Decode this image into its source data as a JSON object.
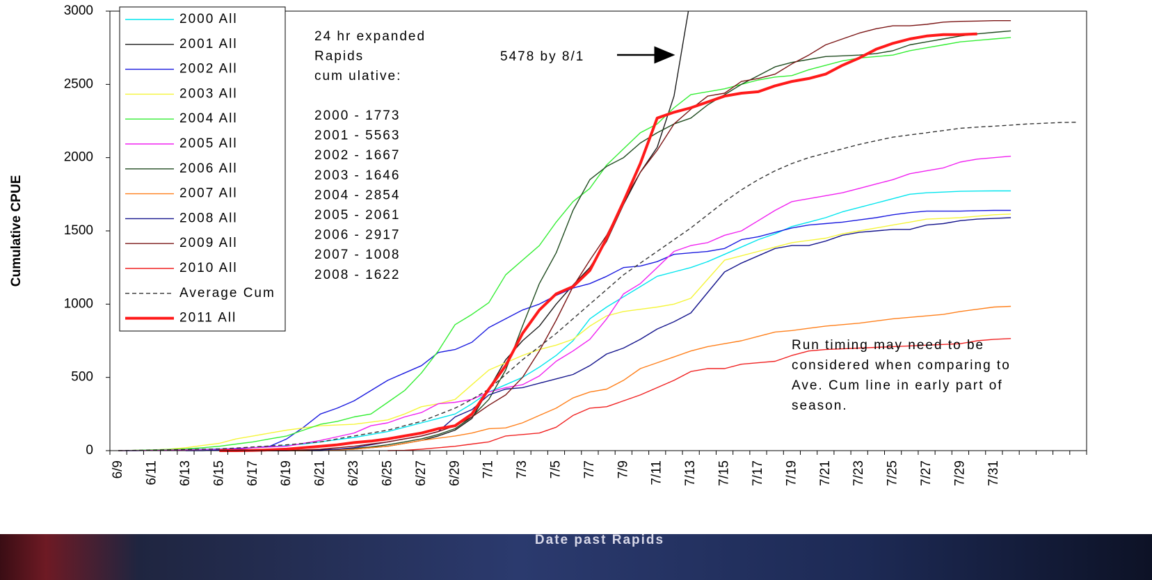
{
  "chart_data": {
    "type": "line",
    "y_label": "Cumulative CPUE",
    "x_label": "Date past Rapids",
    "ylim": [
      0,
      3000
    ],
    "yticks": [
      0,
      500,
      1000,
      1500,
      2000,
      2500,
      3000
    ],
    "legend": "upper left",
    "categories": [
      "6/9",
      null,
      "6/11",
      null,
      "6/13",
      null,
      "6/15",
      null,
      "6/17",
      null,
      "6/19",
      null,
      "6/21",
      null,
      "6/23",
      null,
      "6/25",
      null,
      "6/27",
      null,
      "6/29",
      null,
      "7/1",
      null,
      "7/3",
      null,
      "7/5",
      null,
      "7/7",
      null,
      "7/9",
      null,
      "7/11",
      null,
      "7/13",
      null,
      "7/15",
      null,
      "7/17",
      null,
      "7/19",
      null,
      "7/21",
      null,
      "7/23",
      null,
      "7/25",
      null,
      "7/27",
      null,
      "7/29",
      null,
      "7/31",
      null,
      null,
      null,
      null,
      null
    ],
    "series": [
      {
        "name": "2000 All",
        "color": "#00e5ee",
        "values": [
          0,
          0,
          2,
          5,
          8,
          10,
          12,
          15,
          20,
          25,
          35,
          45,
          60,
          75,
          90,
          110,
          130,
          160,
          190,
          220,
          250,
          320,
          400,
          450,
          500,
          570,
          650,
          750,
          900,
          980,
          1050,
          1120,
          1190,
          1220,
          1250,
          1290,
          1340,
          1390,
          1440,
          1480,
          1530,
          1560,
          1590,
          1630,
          1660,
          1690,
          1720,
          1750,
          1760,
          1765,
          1770,
          1772,
          1773,
          1773,
          null,
          null,
          null,
          null
        ]
      },
      {
        "name": "2001 All",
        "color": "#1a1a1a",
        "values": [
          null,
          null,
          null,
          null,
          null,
          null,
          0,
          0,
          0,
          0,
          0,
          0,
          0,
          5,
          10,
          20,
          30,
          50,
          70,
          100,
          140,
          220,
          420,
          620,
          750,
          850,
          1000,
          1130,
          1250,
          1430,
          1680,
          1900,
          2070,
          2420,
          3100,
          null,
          null,
          null,
          null,
          null,
          null,
          null,
          null,
          null,
          null,
          null,
          null,
          null,
          null,
          null,
          null,
          null,
          null,
          null,
          null,
          null,
          null,
          null
        ]
      },
      {
        "name": "2002 All",
        "color": "#1a1adf",
        "values": [
          null,
          null,
          null,
          null,
          0,
          0,
          5,
          10,
          20,
          30,
          80,
          160,
          250,
          290,
          340,
          410,
          480,
          530,
          580,
          670,
          690,
          740,
          840,
          900,
          960,
          1000,
          1060,
          1110,
          1140,
          1190,
          1250,
          1260,
          1290,
          1340,
          1350,
          1360,
          1380,
          1440,
          1460,
          1490,
          1520,
          1540,
          1550,
          1560,
          1575,
          1590,
          1610,
          1625,
          1635,
          1635,
          1635,
          1638,
          1640,
          1640,
          null,
          null,
          null,
          null
        ]
      },
      {
        "name": "2003 All",
        "color": "#f5f53a",
        "values": [
          0,
          2,
          5,
          10,
          20,
          35,
          50,
          80,
          100,
          120,
          140,
          155,
          170,
          175,
          180,
          195,
          210,
          250,
          300,
          320,
          350,
          450,
          550,
          600,
          650,
          690,
          720,
          760,
          850,
          920,
          950,
          965,
          980,
          1000,
          1040,
          1170,
          1300,
          1330,
          1360,
          1390,
          1420,
          1435,
          1450,
          1480,
          1500,
          1520,
          1540,
          1560,
          1580,
          1585,
          1590,
          1600,
          1610,
          1615,
          null,
          null,
          null,
          null
        ]
      },
      {
        "name": "2004 All",
        "color": "#33ee33",
        "values": [
          0,
          2,
          5,
          8,
          12,
          20,
          30,
          45,
          60,
          80,
          100,
          140,
          180,
          200,
          230,
          250,
          330,
          410,
          530,
          680,
          860,
          930,
          1010,
          1200,
          1300,
          1400,
          1560,
          1700,
          1790,
          1950,
          2060,
          2170,
          2230,
          2340,
          2430,
          2450,
          2470,
          2500,
          2530,
          2550,
          2560,
          2600,
          2630,
          2660,
          2680,
          2690,
          2700,
          2730,
          2750,
          2770,
          2790,
          2800,
          2810,
          2820,
          null,
          null,
          null,
          null
        ]
      },
      {
        "name": "2005 All",
        "color": "#f020f0",
        "values": [
          0,
          0,
          2,
          4,
          6,
          8,
          10,
          15,
          20,
          25,
          30,
          50,
          70,
          95,
          120,
          170,
          190,
          230,
          260,
          320,
          330,
          350,
          400,
          430,
          450,
          510,
          610,
          680,
          760,
          900,
          1070,
          1140,
          1250,
          1360,
          1400,
          1420,
          1470,
          1500,
          1570,
          1640,
          1700,
          1720,
          1740,
          1760,
          1790,
          1820,
          1850,
          1890,
          1910,
          1930,
          1970,
          1990,
          2000,
          2010,
          null,
          null,
          null,
          null
        ]
      },
      {
        "name": "2006 All",
        "color": "#1e4a1e",
        "values": [
          null,
          null,
          null,
          null,
          null,
          null,
          0,
          0,
          0,
          0,
          0,
          2,
          5,
          10,
          15,
          25,
          40,
          60,
          80,
          110,
          150,
          230,
          350,
          550,
          850,
          1140,
          1350,
          1640,
          1850,
          1940,
          2000,
          2100,
          2170,
          2230,
          2270,
          2360,
          2430,
          2500,
          2560,
          2620,
          2650,
          2670,
          2690,
          2695,
          2700,
          2710,
          2730,
          2770,
          2790,
          2810,
          2830,
          2845,
          2855,
          2865,
          null,
          null,
          null,
          null
        ]
      },
      {
        "name": "2007 All",
        "color": "#ff7f1a",
        "values": [
          null,
          null,
          null,
          null,
          null,
          null,
          null,
          null,
          null,
          null,
          0,
          0,
          2,
          5,
          10,
          20,
          30,
          50,
          70,
          85,
          100,
          120,
          150,
          155,
          190,
          240,
          290,
          360,
          400,
          420,
          480,
          560,
          600,
          640,
          680,
          710,
          730,
          750,
          780,
          810,
          820,
          835,
          850,
          860,
          870,
          885,
          900,
          910,
          920,
          930,
          950,
          965,
          980,
          985,
          null,
          null,
          null,
          null
        ]
      },
      {
        "name": "2008 All",
        "color": "#14148c",
        "values": [
          null,
          null,
          null,
          null,
          null,
          null,
          null,
          null,
          0,
          0,
          0,
          2,
          5,
          10,
          20,
          40,
          60,
          80,
          100,
          130,
          230,
          280,
          380,
          420,
          430,
          460,
          490,
          520,
          580,
          660,
          700,
          760,
          830,
          880,
          940,
          1080,
          1220,
          1280,
          1330,
          1380,
          1400,
          1400,
          1430,
          1470,
          1490,
          1500,
          1510,
          1510,
          1540,
          1550,
          1570,
          1580,
          1585,
          1590,
          null,
          null,
          null,
          null
        ]
      },
      {
        "name": "2009 All",
        "color": "#7a1414",
        "values": [
          null,
          null,
          null,
          null,
          null,
          null,
          0,
          0,
          0,
          0,
          0,
          5,
          10,
          20,
          30,
          45,
          60,
          80,
          100,
          130,
          170,
          230,
          310,
          380,
          500,
          680,
          890,
          1120,
          1300,
          1470,
          1700,
          1900,
          2050,
          2230,
          2330,
          2420,
          2440,
          2520,
          2540,
          2570,
          2640,
          2700,
          2770,
          2810,
          2850,
          2880,
          2900,
          2900,
          2910,
          2925,
          2930,
          2932,
          2935,
          2935,
          null,
          null,
          null,
          null
        ]
      },
      {
        "name": "2010 All",
        "color": "#f02020",
        "values": [
          null,
          null,
          null,
          null,
          null,
          null,
          null,
          null,
          null,
          null,
          null,
          null,
          null,
          null,
          null,
          null,
          0,
          2,
          10,
          20,
          30,
          45,
          60,
          100,
          110,
          120,
          160,
          240,
          290,
          300,
          340,
          380,
          430,
          480,
          540,
          560,
          560,
          590,
          600,
          610,
          650,
          680,
          690,
          695,
          700,
          705,
          710,
          715,
          720,
          725,
          730,
          750,
          760,
          765,
          null,
          null,
          null,
          null
        ]
      },
      {
        "name": "Average Cum",
        "color": "#333333",
        "dashed": true,
        "values": [
          0,
          2,
          4,
          6,
          8,
          10,
          12,
          18,
          25,
          32,
          40,
          50,
          60,
          80,
          100,
          120,
          140,
          170,
          200,
          245,
          290,
          350,
          420,
          520,
          620,
          710,
          800,
          900,
          1000,
          1100,
          1200,
          1280,
          1360,
          1440,
          1520,
          1610,
          1700,
          1780,
          1850,
          1910,
          1960,
          2000,
          2030,
          2060,
          2090,
          2115,
          2140,
          2155,
          2170,
          2185,
          2200,
          2208,
          2215,
          2222,
          2230,
          2235,
          2240,
          2242
        ]
      },
      {
        "name": "2011 All",
        "color": "#ff1a1a",
        "thick": true,
        "values": [
          null,
          null,
          null,
          null,
          null,
          null,
          0,
          0,
          2,
          5,
          10,
          20,
          30,
          40,
          55,
          65,
          80,
          100,
          120,
          150,
          170,
          250,
          420,
          580,
          800,
          960,
          1070,
          1120,
          1230,
          1450,
          1700,
          1960,
          2270,
          2310,
          2340,
          2380,
          2420,
          2440,
          2450,
          2490,
          2520,
          2540,
          2570,
          2630,
          2680,
          2740,
          2780,
          2810,
          2830,
          2840,
          2840,
          2845,
          null,
          null,
          null,
          null,
          null,
          null
        ]
      }
    ],
    "note_title": [
      "24 hr expanded",
      "Rapids",
      "cum ulative:"
    ],
    "note_totals": [
      "2000 - 1773",
      "2001 - 5563",
      "2002 - 1667",
      "2003 - 1646",
      "2004 - 2854",
      "2005 - 2061",
      "2006 - 2917",
      "2007 - 1008",
      "2008 - 1622"
    ],
    "arrow_note": "5478 by 8/1",
    "caveat": [
      "Run timing may need to be",
      "considered when comparing to",
      "Ave. Cum line in early part of",
      "season."
    ]
  }
}
